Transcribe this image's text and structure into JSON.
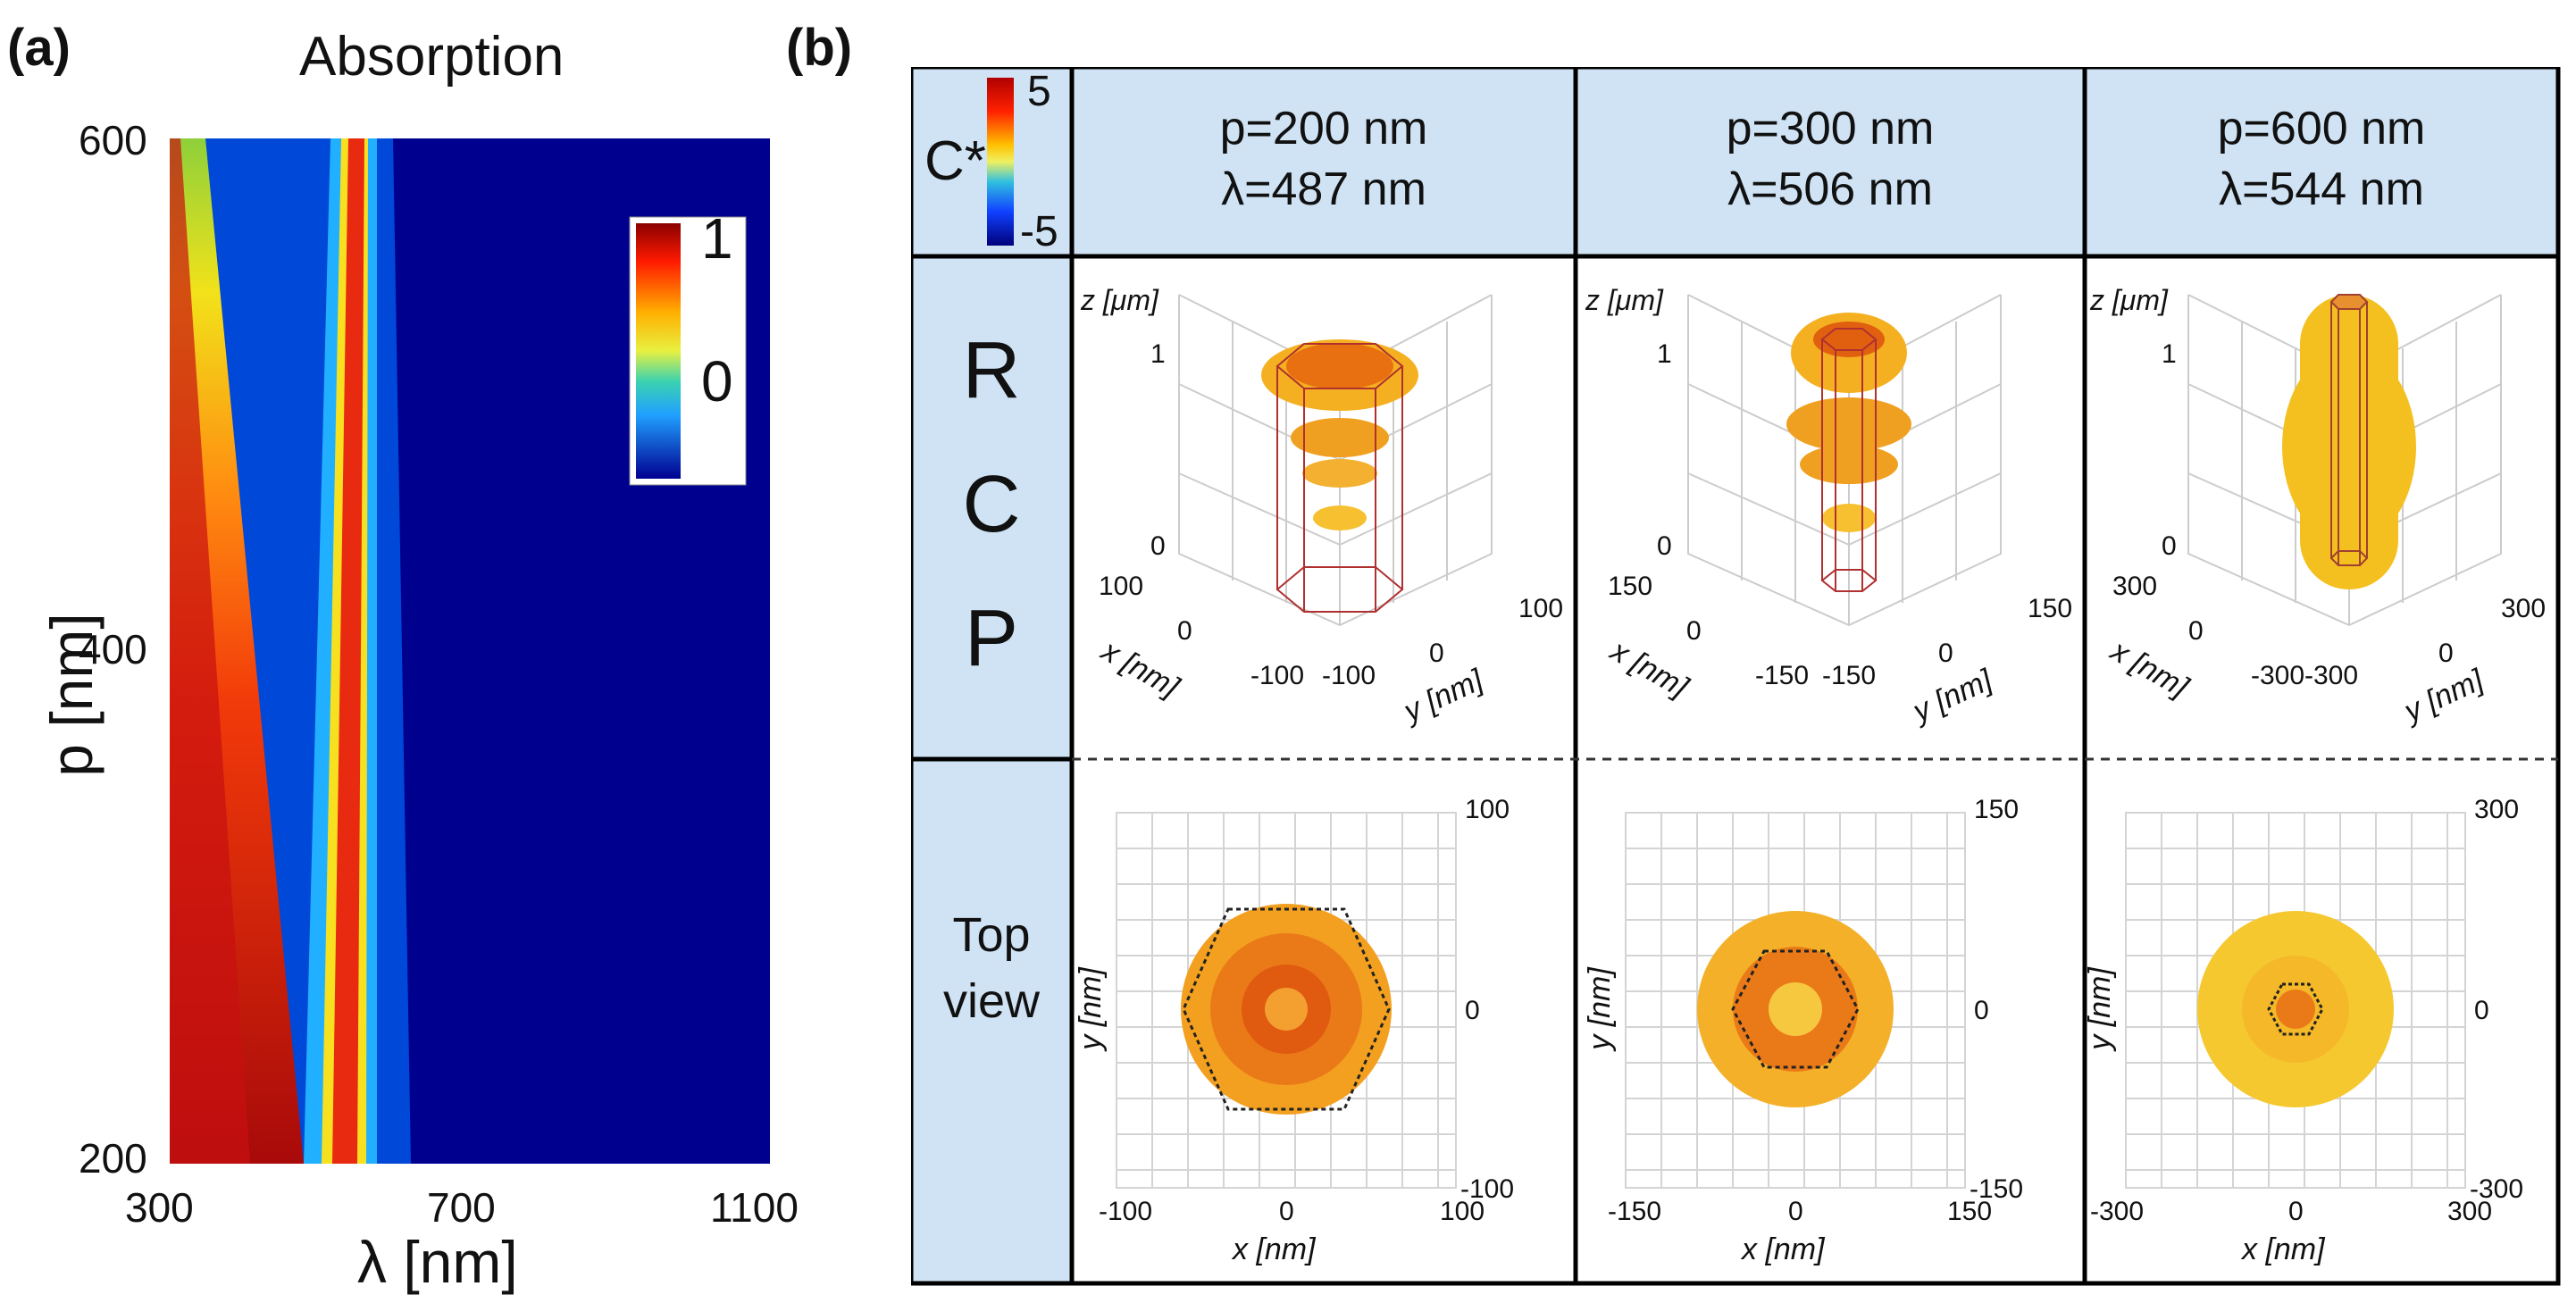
{
  "panel_a": {
    "label": "(a)",
    "title": "Absorption",
    "xlabel": "λ [nm]",
    "ylabel": "p [nm]",
    "xticks": [
      "300",
      "700",
      "1100"
    ],
    "yticks": [
      "600",
      "400",
      "200"
    ],
    "colorbar": {
      "max": "1",
      "min": "0"
    },
    "chart_data": {
      "type": "heatmap",
      "title": "Absorption",
      "xlabel": "λ [nm]",
      "ylabel": "p [nm]",
      "xlim": [
        300,
        1100
      ],
      "ylim": [
        200,
        600
      ],
      "colorbar_range": [
        0,
        1
      ],
      "colormap": "jet",
      "features": [
        {
          "p": 200,
          "high_absorption_band_nm": [
            300,
            370
          ],
          "narrow_peak_nm": 520
        },
        {
          "p": 400,
          "high_absorption_band_nm": [
            300,
            340
          ],
          "narrow_peak_nm": 540
        },
        {
          "p": 600,
          "high_absorption_band_nm": [
            300,
            320
          ],
          "narrow_peak_nm": 560
        }
      ]
    }
  },
  "panel_b": {
    "label": "(b)",
    "colorbar": {
      "symbol": "C*",
      "max": "5",
      "min": "-5"
    },
    "columns": [
      {
        "p": "p=200 nm",
        "lambda": "λ=487 nm",
        "range": "100",
        "neg_range": "-100"
      },
      {
        "p": "p=300 nm",
        "lambda": "λ=506 nm",
        "range": "150",
        "neg_range": "-150"
      },
      {
        "p": "p=600 nm",
        "lambda": "λ=544 nm",
        "range": "300",
        "neg_range": "-300"
      }
    ],
    "row1_letters": [
      "R",
      "C",
      "P"
    ],
    "row2_label": [
      "Top",
      "view"
    ],
    "axis_labels": {
      "z": "z [μm]",
      "x": "x [nm]",
      "y": "y [nm]",
      "z_ticks": [
        "1",
        "0"
      ],
      "zero": "0"
    }
  }
}
